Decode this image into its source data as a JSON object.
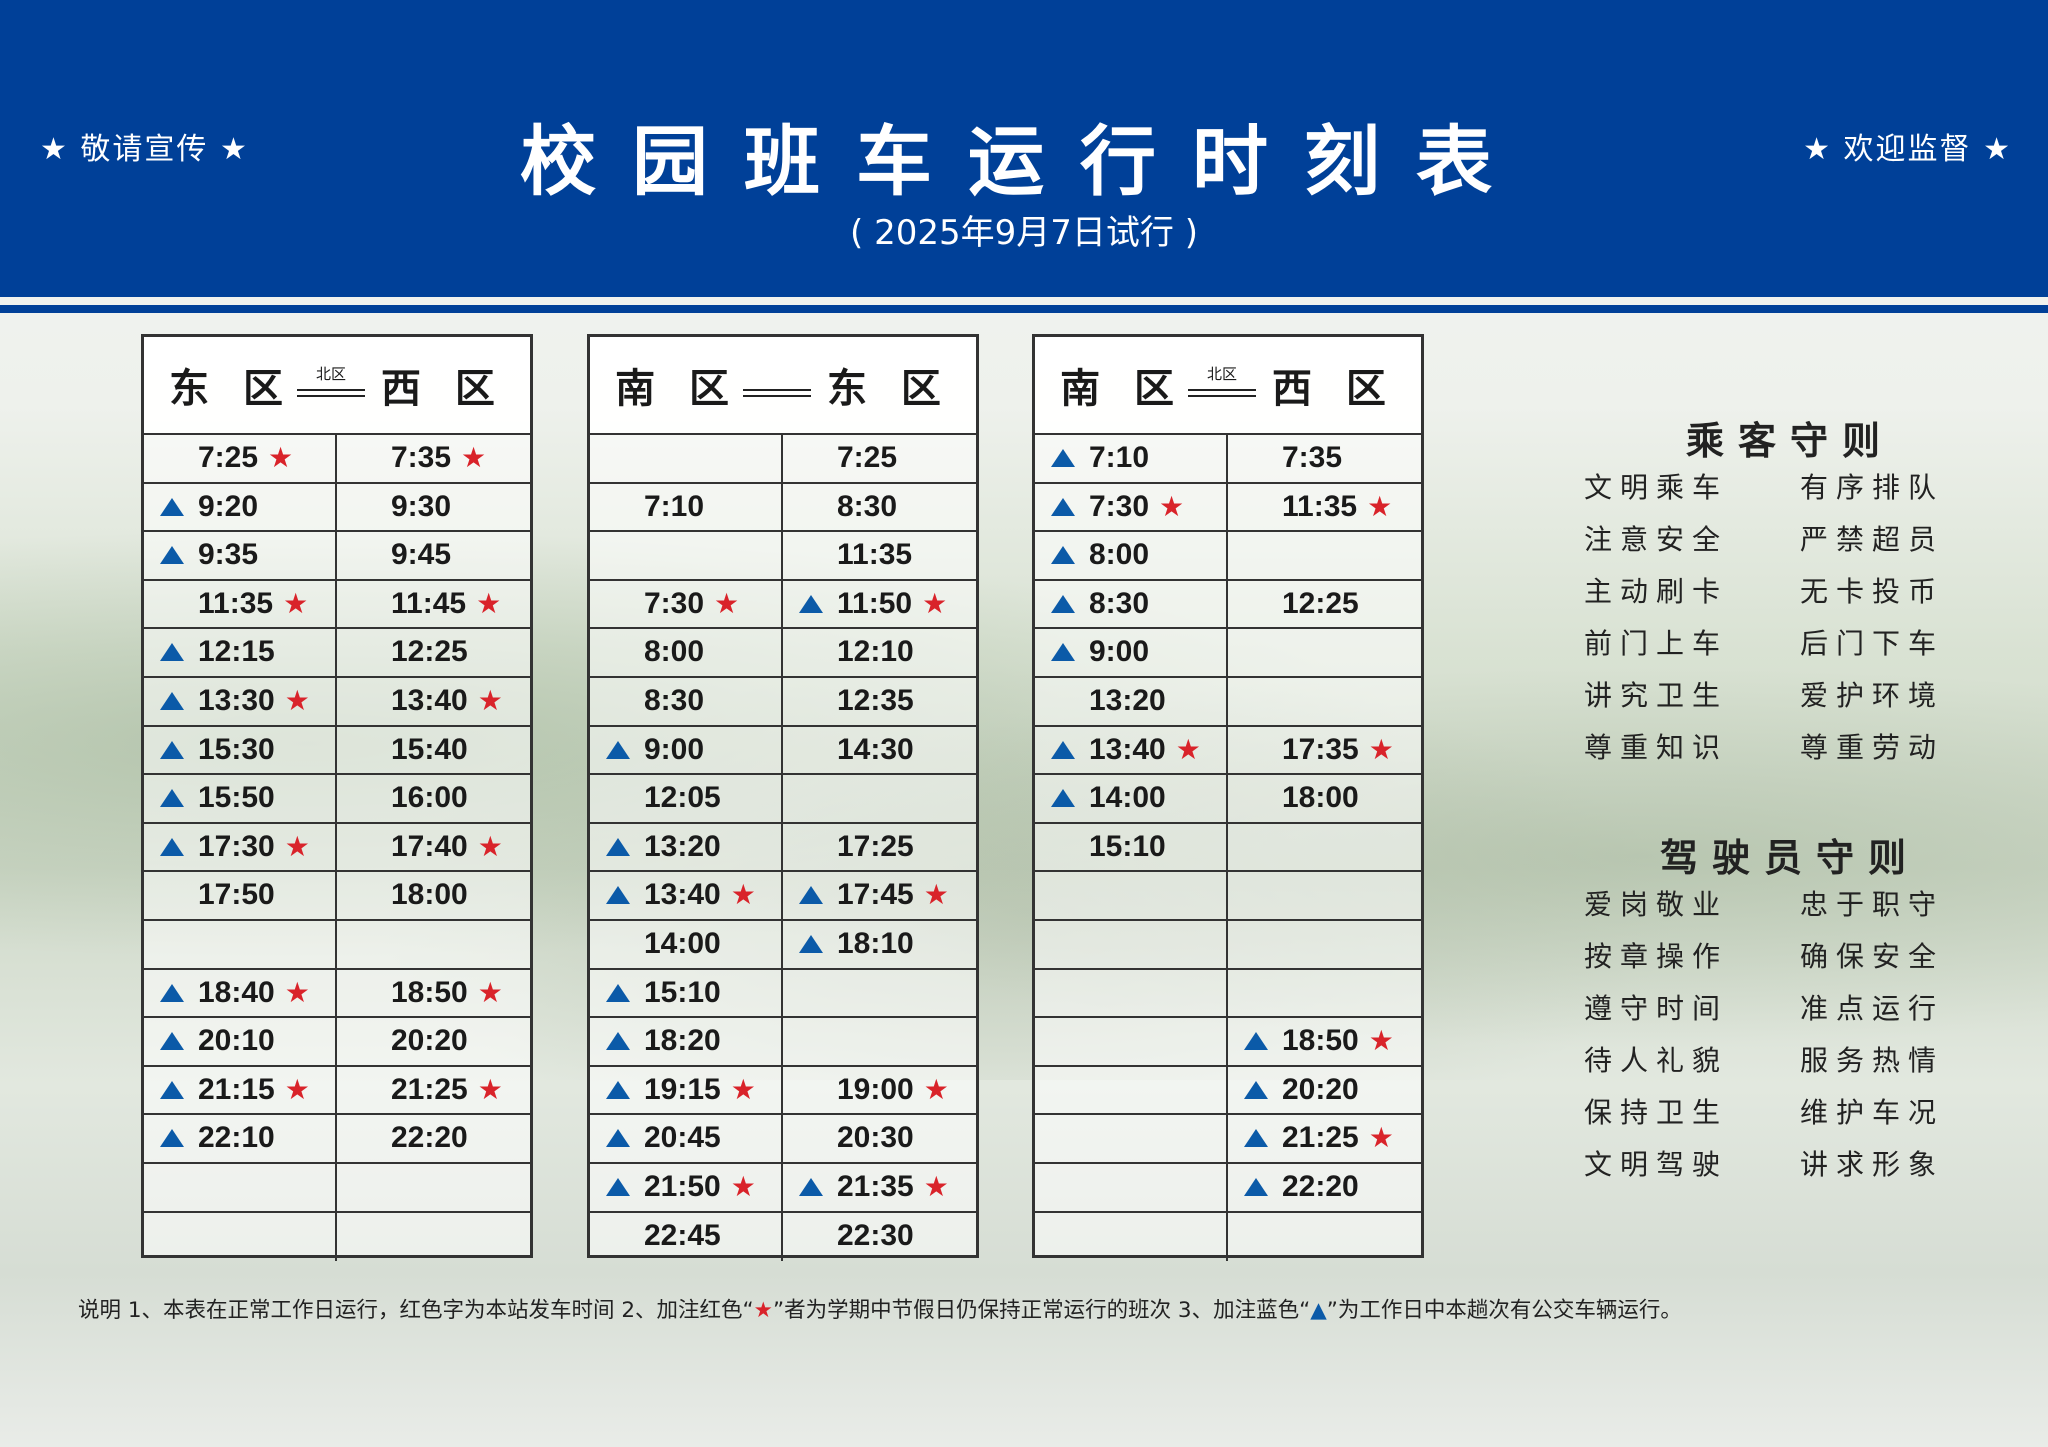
{
  "header": {
    "left_slogan": "★ 敬请宣传 ★",
    "right_slogan": "★ 欢迎监督 ★",
    "title": "校园班车运行时刻表",
    "subtitle": "( 2025年9月7日试行 )"
  },
  "colors": {
    "header_blue": "#004098",
    "star_red": "#d9232a",
    "triangle_blue": "#0b5aa8"
  },
  "icons": {
    "star": "red-star-icon",
    "triangle": "blue-triangle-icon"
  },
  "tables": [
    {
      "from": "东 区",
      "to": "西 区",
      "via": "北区",
      "rows": [
        [
          {
            "t": "7:25",
            "s": 1
          },
          {
            "t": "7:35",
            "s": 1
          }
        ],
        [
          {
            "t": "9:20",
            "a": 1
          },
          {
            "t": "9:30"
          }
        ],
        [
          {
            "t": "9:35",
            "a": 1
          },
          {
            "t": "9:45"
          }
        ],
        [
          {
            "t": "11:35",
            "s": 1
          },
          {
            "t": "11:45",
            "s": 1
          }
        ],
        [
          {
            "t": "12:15",
            "a": 1
          },
          {
            "t": "12:25"
          }
        ],
        [
          {
            "t": "13:30",
            "a": 1,
            "s": 1
          },
          {
            "t": "13:40",
            "s": 1
          }
        ],
        [
          {
            "t": "15:30",
            "a": 1
          },
          {
            "t": "15:40"
          }
        ],
        [
          {
            "t": "15:50",
            "a": 1
          },
          {
            "t": "16:00"
          }
        ],
        [
          {
            "t": "17:30",
            "a": 1,
            "s": 1
          },
          {
            "t": "17:40",
            "s": 1
          }
        ],
        [
          {
            "t": "17:50"
          },
          {
            "t": "18:00"
          }
        ],
        [
          {},
          {}
        ],
        [
          {
            "t": "18:40",
            "a": 1,
            "s": 1
          },
          {
            "t": "18:50",
            "s": 1
          }
        ],
        [
          {
            "t": "20:10",
            "a": 1
          },
          {
            "t": "20:20"
          }
        ],
        [
          {
            "t": "21:15",
            "a": 1,
            "s": 1
          },
          {
            "t": "21:25",
            "s": 1
          }
        ],
        [
          {
            "t": "22:10",
            "a": 1
          },
          {
            "t": "22:20"
          }
        ],
        [
          {},
          {}
        ],
        [
          {},
          {}
        ]
      ]
    },
    {
      "from": "南 区",
      "to": "东 区",
      "via": "",
      "rows": [
        [
          {},
          {
            "t": "7:25"
          }
        ],
        [
          {
            "t": "7:10"
          },
          {
            "t": "8:30"
          }
        ],
        [
          {},
          {
            "t": "11:35"
          }
        ],
        [
          {
            "t": "7:30",
            "s": 1
          },
          {
            "t": "11:50",
            "a": 1,
            "s": 1
          }
        ],
        [
          {
            "t": "8:00"
          },
          {
            "t": "12:10"
          }
        ],
        [
          {
            "t": "8:30"
          },
          {
            "t": "12:35"
          }
        ],
        [
          {
            "t": "9:00",
            "a": 1
          },
          {
            "t": "14:30"
          }
        ],
        [
          {
            "t": "12:05"
          },
          {}
        ],
        [
          {
            "t": "13:20",
            "a": 1
          },
          {
            "t": "17:25"
          }
        ],
        [
          {
            "t": "13:40",
            "a": 1,
            "s": 1
          },
          {
            "t": "17:45",
            "a": 1,
            "s": 1
          }
        ],
        [
          {
            "t": "14:00"
          },
          {
            "t": "18:10",
            "a": 1
          }
        ],
        [
          {
            "t": "15:10",
            "a": 1
          },
          {}
        ],
        [
          {
            "t": "18:20",
            "a": 1
          },
          {}
        ],
        [
          {
            "t": "19:15",
            "a": 1,
            "s": 1
          },
          {
            "t": "19:00",
            "s": 1
          }
        ],
        [
          {
            "t": "20:45",
            "a": 1
          },
          {
            "t": "20:30"
          }
        ],
        [
          {
            "t": "21:50",
            "a": 1,
            "s": 1
          },
          {
            "t": "21:35",
            "a": 1,
            "s": 1
          }
        ],
        [
          {
            "t": "22:45"
          },
          {
            "t": "22:30"
          }
        ]
      ]
    },
    {
      "from": "南 区",
      "to": "西 区",
      "via": "北区",
      "rows": [
        [
          {
            "t": "7:10",
            "a": 1
          },
          {
            "t": "7:35"
          }
        ],
        [
          {
            "t": "7:30",
            "a": 1,
            "s": 1
          },
          {
            "t": "11:35",
            "s": 1
          }
        ],
        [
          {
            "t": "8:00",
            "a": 1
          },
          {}
        ],
        [
          {
            "t": "8:30",
            "a": 1
          },
          {
            "t": "12:25"
          }
        ],
        [
          {
            "t": "9:00",
            "a": 1
          },
          {}
        ],
        [
          {
            "t": "13:20"
          },
          {}
        ],
        [
          {
            "t": "13:40",
            "a": 1,
            "s": 1
          },
          {
            "t": "17:35",
            "s": 1
          }
        ],
        [
          {
            "t": "14:00",
            "a": 1
          },
          {
            "t": "18:00"
          }
        ],
        [
          {
            "t": "15:10"
          },
          {}
        ],
        [
          {},
          {}
        ],
        [
          {},
          {}
        ],
        [
          {},
          {}
        ],
        [
          {},
          {
            "t": "18:50",
            "a": 1,
            "s": 1
          }
        ],
        [
          {},
          {
            "t": "20:20",
            "a": 1
          }
        ],
        [
          {},
          {
            "t": "21:25",
            "a": 1,
            "s": 1
          }
        ],
        [
          {},
          {
            "t": "22:20",
            "a": 1
          }
        ],
        [
          {},
          {}
        ]
      ]
    }
  ],
  "passenger_rules": {
    "title": "乘客守则",
    "items": [
      "文明乘车",
      "有序排队",
      "注意安全",
      "严禁超员",
      "主动刷卡",
      "无卡投币",
      "前门上车",
      "后门下车",
      "讲究卫生",
      "爱护环境",
      "尊重知识",
      "尊重劳动"
    ]
  },
  "driver_rules": {
    "title": "驾驶员守则",
    "items": [
      "爱岗敬业",
      "忠于职守",
      "按章操作",
      "确保安全",
      "遵守时间",
      "准点运行",
      "待人礼貌",
      "服务热情",
      "保持卫生",
      "维护车况",
      "文明驾驶",
      "讲求形象"
    ]
  },
  "footer": {
    "part1": "说明 1、本表在正常工作日运行，红色字为本站发车时间  2、加注红色“",
    "star": "★",
    "part2": "”者为学期中节假日仍保持正常运行的班次  3、加注蓝色“",
    "triangle": "▲",
    "part3": "”为工作日中本趟次有公交车辆运行。"
  }
}
